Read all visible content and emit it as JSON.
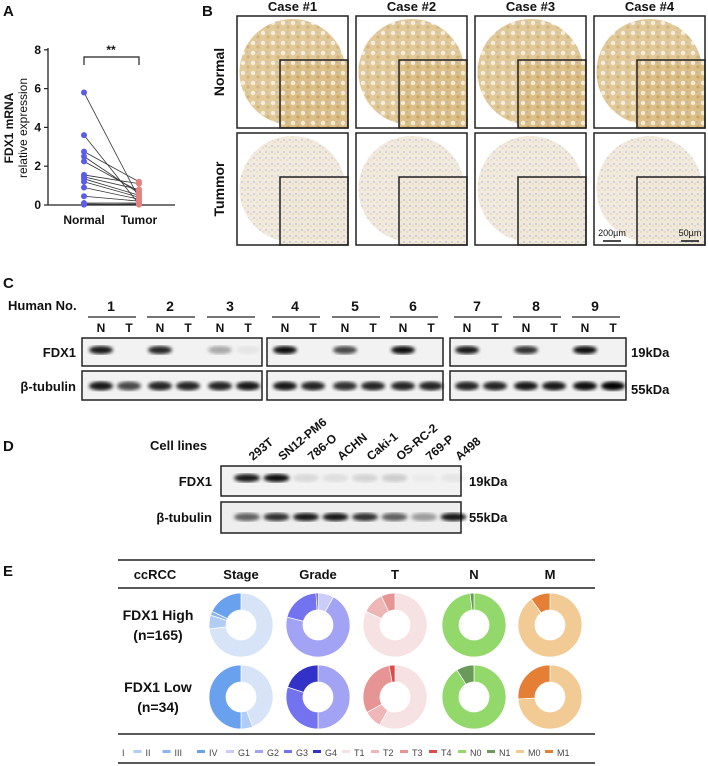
{
  "panel_labels": {
    "a": "A",
    "b": "B",
    "c": "C",
    "d": "D",
    "e": "E"
  },
  "panel_a": {
    "chart_data": {
      "type": "scatter",
      "categories": [
        "Normal",
        "Tumor"
      ],
      "ylabel_line1": "FDX1 mRNA",
      "ylabel_line2": "relative expression",
      "ylim": [
        0,
        8
      ],
      "yticks": [
        0,
        2,
        4,
        6,
        8
      ],
      "significance": "**",
      "pairs": [
        {
          "normal": 5.8,
          "tumor": 0.35
        },
        {
          "normal": 3.6,
          "tumor": 0.05
        },
        {
          "normal": 2.75,
          "tumor": 1.2
        },
        {
          "normal": 2.5,
          "tumor": 0.6
        },
        {
          "normal": 2.25,
          "tumor": 0.7
        },
        {
          "normal": 1.55,
          "tumor": 1.1
        },
        {
          "normal": 1.45,
          "tumor": 0.8
        },
        {
          "normal": 1.35,
          "tumor": 0.5
        },
        {
          "normal": 1.2,
          "tumor": 0.4
        },
        {
          "normal": 0.9,
          "tumor": 0.3
        },
        {
          "normal": 0.45,
          "tumor": 0.2
        },
        {
          "normal": 0.1,
          "tumor": 0.1
        },
        {
          "normal": 0.05,
          "tumor": 0.02
        },
        {
          "normal": 0.02,
          "tumor": 0.05
        }
      ],
      "colors": {
        "normal": "#5b5bf0",
        "tumor": "#e58080"
      }
    }
  },
  "panel_b": {
    "cases": [
      "Case #1",
      "Case #2",
      "Case #3",
      "Case #4"
    ],
    "rows": [
      "Normal",
      "Tummor"
    ],
    "scale_bars": {
      "overview": "200µm",
      "inset": "50µm"
    }
  },
  "panel_c": {
    "row_header": "Human No.",
    "patients": [
      "1",
      "2",
      "3",
      "4",
      "5",
      "6",
      "7",
      "8",
      "9"
    ],
    "lane_labels": {
      "n": "N",
      "t": "T"
    },
    "proteins": [
      {
        "name": "FDX1",
        "size": "19kDa",
        "intensity_n": [
          0.9,
          0.85,
          0.3,
          0.95,
          0.7,
          0.95,
          0.9,
          0.8,
          0.95
        ],
        "intensity_t": [
          0,
          0,
          0.05,
          0,
          0,
          0,
          0,
          0,
          0
        ]
      },
      {
        "name": "β-tubulin",
        "size": "55kDa",
        "intensity_n": [
          0.9,
          0.85,
          0.85,
          0.9,
          0.8,
          0.85,
          0.85,
          0.9,
          0.95
        ],
        "intensity_t": [
          0.7,
          0.85,
          0.9,
          0.85,
          0.85,
          0.85,
          0.85,
          0.9,
          1.0
        ]
      }
    ]
  },
  "panel_d": {
    "row_header": "Cell lines",
    "cell_lines": [
      "293T",
      "SN12-PM6",
      "786-O",
      "ACHN",
      "Caki-1",
      "OS-RC-2",
      "769-P",
      "A498"
    ],
    "proteins": [
      {
        "name": "FDX1",
        "size": "19kDa",
        "intensity": [
          0.9,
          0.95,
          0.1,
          0.08,
          0.12,
          0.15,
          0.03,
          0.05
        ]
      },
      {
        "name": "β-tubulin",
        "size": "55kDa",
        "intensity": [
          0.6,
          0.8,
          0.9,
          0.9,
          0.8,
          0.6,
          0.35,
          0.9
        ]
      }
    ]
  },
  "panel_e": {
    "chart_data": {
      "type": "pie",
      "variant": "donut",
      "header": [
        "ccRCC",
        "Stage",
        "Grade",
        "T",
        "N",
        "M"
      ],
      "groups": [
        {
          "label": "FDX1 High",
          "n": "(n=165)"
        },
        {
          "label": "FDX1 Low",
          "n": "(n=34)"
        }
      ],
      "variables": [
        {
          "name": "Stage",
          "categories": [
            "I",
            "II",
            "III",
            "IV"
          ],
          "colors": [
            "#d7e4f7",
            "#b0cdf6",
            "#8ab4f3",
            "#6aa1ef"
          ],
          "values": [
            [
              0.73,
              0.07,
              0.02,
              0.18
            ],
            [
              0.44,
              0.06,
              0.0,
              0.5
            ]
          ]
        },
        {
          "name": "Grade",
          "categories": [
            "G1",
            "G2",
            "G3",
            "G4"
          ],
          "colors": [
            "#ccccfb",
            "#a3a3f6",
            "#7373ef",
            "#3232c8"
          ],
          "values": [
            [
              0.08,
              0.71,
              0.2,
              0.01
            ],
            [
              0.0,
              0.5,
              0.3,
              0.2
            ]
          ]
        },
        {
          "name": "T",
          "categories": [
            "T1",
            "T2",
            "T3",
            "T4"
          ],
          "colors": [
            "#f7e2e3",
            "#eeb6b6",
            "#e79494",
            "#dc4a4a"
          ],
          "values": [
            [
              0.82,
              0.11,
              0.07,
              0.0
            ],
            [
              0.58,
              0.09,
              0.3,
              0.03
            ]
          ]
        },
        {
          "name": "N",
          "categories": [
            "N0",
            "N1"
          ],
          "colors": [
            "#93d86a",
            "#6a9a5a"
          ],
          "values": [
            [
              0.98,
              0.02
            ],
            [
              0.91,
              0.09
            ]
          ]
        },
        {
          "name": "M",
          "categories": [
            "M0",
            "M1"
          ],
          "colors": [
            "#f2ca94",
            "#e57f35"
          ],
          "values": [
            [
              0.9,
              0.1
            ],
            [
              0.74,
              0.26
            ]
          ]
        }
      ],
      "legend": [
        "I",
        "II",
        "III",
        "IV",
        "G1",
        "G2",
        "G3",
        "G4",
        "T1",
        "T2",
        "T3",
        "T4",
        "N0",
        "N1",
        "M0",
        "M1"
      ],
      "legend_placement": "bottom"
    }
  }
}
